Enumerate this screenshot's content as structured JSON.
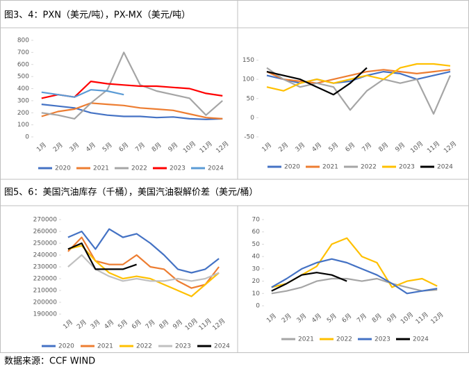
{
  "headers": [
    "图3、4：PXN（美元/吨），PX-MX（美元/吨）",
    "图5、6：美国汽油库存（千桶），美国汽油裂解价差（美元/桶）"
  ],
  "source": "数据来源：CCF   WIND",
  "chart_data": [
    {
      "type": "line",
      "categories": [
        "1月",
        "2月",
        "3月",
        "4月",
        "5月",
        "6月",
        "7月",
        "8月",
        "9月",
        "10月",
        "11月",
        "12月"
      ],
      "ylim": [
        0,
        800
      ],
      "yticks": [
        0,
        100,
        200,
        300,
        400,
        500,
        600,
        700,
        800
      ],
      "series": [
        {
          "name": "2020",
          "color": "#4472c4",
          "values": [
            270,
            255,
            240,
            200,
            180,
            170,
            170,
            160,
            165,
            150,
            145,
            150
          ]
        },
        {
          "name": "2021",
          "color": "#ed7d31",
          "values": [
            170,
            210,
            230,
            280,
            270,
            260,
            240,
            230,
            220,
            190,
            160,
            150
          ]
        },
        {
          "name": "2022",
          "color": "#a5a5a5",
          "values": [
            200,
            180,
            150,
            280,
            390,
            700,
            430,
            380,
            350,
            320,
            180,
            300
          ]
        },
        {
          "name": "2023",
          "color": "#ff0000",
          "values": [
            320,
            350,
            330,
            460,
            440,
            430,
            420,
            420,
            410,
            400,
            360,
            340
          ]
        },
        {
          "name": "2024",
          "color": "#5b9bd5",
          "values": [
            370,
            350,
            330,
            390,
            380,
            350,
            null,
            null,
            null,
            null,
            null,
            null
          ]
        }
      ]
    },
    {
      "type": "line",
      "categories": [
        "1月",
        "2月",
        "3月",
        "4月",
        "5月",
        "6月",
        "7月",
        "8月",
        "9月",
        "10月",
        "11月",
        "12月"
      ],
      "ylim": [
        -50,
        160
      ],
      "yticks": [
        -50,
        0,
        50,
        100,
        150
      ],
      "series": [
        {
          "name": "2020",
          "color": "#4472c4",
          "values": [
            110,
            100,
            90,
            100,
            90,
            95,
            110,
            120,
            115,
            100,
            110,
            120
          ]
        },
        {
          "name": "2021",
          "color": "#ed7d31",
          "values": [
            120,
            100,
            95,
            90,
            100,
            110,
            120,
            125,
            120,
            115,
            120,
            125
          ]
        },
        {
          "name": "2022",
          "color": "#a5a5a5",
          "values": [
            130,
            100,
            80,
            90,
            80,
            20,
            70,
            100,
            90,
            100,
            10,
            110
          ]
        },
        {
          "name": "2023",
          "color": "#ffc000",
          "values": [
            80,
            70,
            90,
            100,
            90,
            100,
            110,
            100,
            130,
            140,
            140,
            135
          ]
        },
        {
          "name": "2024",
          "color": "#000000",
          "values": [
            120,
            110,
            100,
            80,
            60,
            90,
            130,
            null,
            null,
            null,
            null,
            null
          ]
        }
      ]
    },
    {
      "type": "line",
      "categories": [
        "1月",
        "2月",
        "3月",
        "4月",
        "5月",
        "6月",
        "7月",
        "8月",
        "9月",
        "10月",
        "11月",
        "12月"
      ],
      "ylim": [
        190000,
        270000
      ],
      "yticks": [
        190000,
        200000,
        210000,
        220000,
        230000,
        240000,
        250000,
        260000,
        270000
      ],
      "series": [
        {
          "name": "2020",
          "color": "#4472c4",
          "values": [
            255000,
            260000,
            245000,
            262000,
            255000,
            258000,
            250000,
            240000,
            228000,
            225000,
            228000,
            237000
          ]
        },
        {
          "name": "2021",
          "color": "#ed7d31",
          "values": [
            243000,
            255000,
            235000,
            232000,
            232000,
            240000,
            230000,
            228000,
            218000,
            212000,
            215000,
            230000
          ]
        },
        {
          "name": "2022",
          "color": "#ffc000",
          "values": [
            245000,
            248000,
            235000,
            225000,
            220000,
            222000,
            220000,
            215000,
            210000,
            205000,
            215000,
            225000
          ]
        },
        {
          "name": "2023",
          "color": "#c0c0c0",
          "values": [
            230000,
            240000,
            228000,
            222000,
            218000,
            220000,
            218000,
            218000,
            220000,
            218000,
            220000,
            225000
          ]
        },
        {
          "name": "2024",
          "color": "#000000",
          "values": [
            245000,
            250000,
            228000,
            228000,
            228000,
            232000,
            null,
            null,
            null,
            null,
            null,
            null
          ]
        }
      ]
    },
    {
      "type": "line",
      "categories": [
        "1月",
        "2月",
        "3月",
        "4月",
        "5月",
        "6月",
        "7月",
        "8月",
        "9月",
        "10月",
        "11月",
        "12月"
      ],
      "ylim": [
        0,
        70
      ],
      "yticks": [
        0,
        10,
        20,
        30,
        40,
        50,
        60,
        70
      ],
      "series": [
        {
          "name": "2021",
          "color": "#a5a5a5",
          "values": [
            10,
            12,
            15,
            20,
            22,
            22,
            20,
            22,
            18,
            15,
            12,
            13
          ]
        },
        {
          "name": "2022",
          "color": "#ffc000",
          "values": [
            15,
            18,
            25,
            32,
            50,
            55,
            40,
            35,
            15,
            20,
            22,
            16
          ]
        },
        {
          "name": "2023",
          "color": "#4472c4",
          "values": [
            15,
            22,
            30,
            35,
            38,
            35,
            30,
            25,
            18,
            10,
            12,
            14
          ]
        },
        {
          "name": "2024",
          "color": "#000000",
          "values": [
            12,
            18,
            25,
            27,
            25,
            20,
            null,
            null,
            null,
            null,
            null,
            null
          ]
        }
      ]
    }
  ]
}
